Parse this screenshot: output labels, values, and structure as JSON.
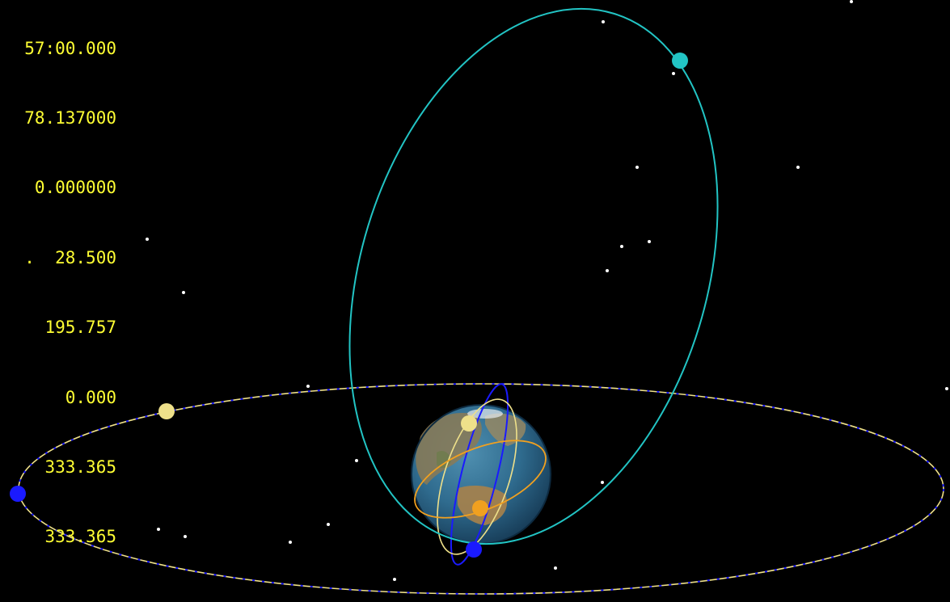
{
  "readout": {
    "lines": [
      "57:00.000",
      "78.137000",
      "0.000000",
      ".  28.500",
      "195.757",
      "0.000",
      "333.365",
      "333.365"
    ]
  },
  "colors": {
    "background": "#000000",
    "readout_text": "#ffff33",
    "orbit_cyan": "#22c4c4",
    "orbit_yellow": "#eee08a",
    "orbit_blue": "#1a1aff",
    "orbit_orange": "#f0a020",
    "star": "#ffffff"
  },
  "icons": {
    "earth": "earth-globe-icon",
    "satellite_cyan": "satellite-marker-icon",
    "satellite_yellow": "satellite-marker-icon",
    "satellite_blue": "satellite-marker-icon",
    "satellite_orange": "satellite-marker-icon"
  }
}
